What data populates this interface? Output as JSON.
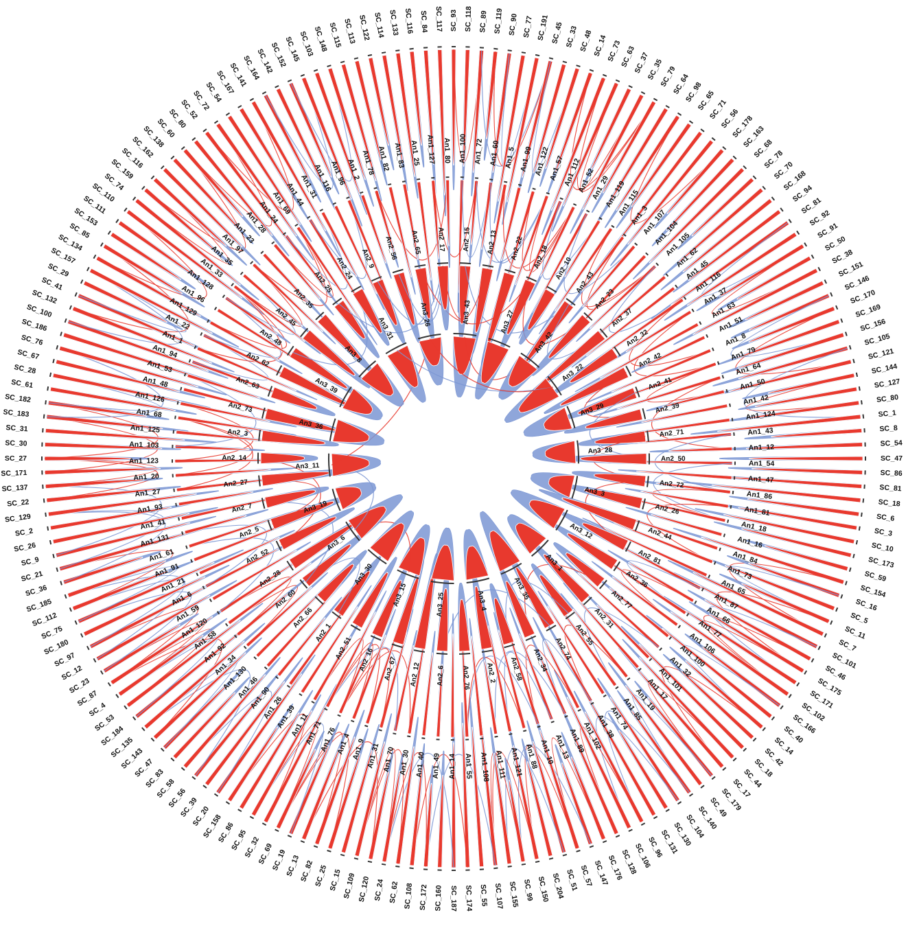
{
  "colors": {
    "primary_link": "#e8392e",
    "secondary_link": "#7b96d4",
    "segment_stroke": "#333333",
    "label": "#111111"
  },
  "rings": [
    {
      "id": "outer",
      "labels": [
        "SC_93",
        "SC_118",
        "SC_89",
        "SC_119",
        "SC_90",
        "SC_77",
        "SC_191",
        "SC_45",
        "SC_33",
        "SC_48",
        "SC_14",
        "SC_73",
        "SC_63",
        "SC_37",
        "SC_35",
        "SC_79",
        "SC_64",
        "SC_98",
        "SC_65",
        "SC_71",
        "SC_56",
        "SC_178",
        "SC_163",
        "SC_68",
        "SC_78",
        "SC_70",
        "SC_168",
        "SC_94",
        "SC_81",
        "SC_92",
        "SC_91",
        "SC_50",
        "SC_38",
        "SC_151",
        "SC_146",
        "SC_170",
        "SC_169",
        "SC_156",
        "SC_105",
        "SC_121",
        "SC_144",
        "SC_127",
        "SC_80",
        "SC_1",
        "SC_8",
        "SC_54",
        "SC_47",
        "SC_86",
        "SC_81",
        "SC_18",
        "SC_6",
        "SC_3",
        "SC_10",
        "SC_173",
        "SC_59",
        "SC_154",
        "SC_16",
        "SC_5",
        "SC_11",
        "SC_7",
        "SC_101",
        "SC_46",
        "SC_175",
        "SC_171",
        "SC_102",
        "SC_166",
        "SC_40",
        "SC_14",
        "SC_42",
        "SC_18",
        "SC_44",
        "SC_17",
        "SC_179",
        "SC_49",
        "SC_140",
        "SC_104",
        "SC_130",
        "SC_131",
        "SC_96",
        "SC_106",
        "SC_128",
        "SC_176",
        "SC_147",
        "SC_57",
        "SC_51",
        "SC_204",
        "SC_150",
        "SC_99",
        "SC_155",
        "SC_107",
        "SC_55",
        "SC_174",
        "SC_187",
        "SC_160",
        "SC_172",
        "SC_108",
        "SC_62",
        "SC_24",
        "SC_120",
        "SC_109",
        "SC_15",
        "SC_25",
        "SC_82",
        "SC_13",
        "SC_19",
        "SC_69",
        "SC_32",
        "SC_95",
        "SC_86",
        "SC_158",
        "SC_20",
        "SC_39",
        "SC_56",
        "SC_58",
        "SC_83",
        "SC_47",
        "SC_143",
        "SC_135",
        "SC_184",
        "SC_53",
        "SC_4",
        "SC_87",
        "SC_23",
        "SC_12",
        "SC_97",
        "SC_180",
        "SC_75",
        "SC_112",
        "SC_185",
        "SC_36",
        "SC_21",
        "SC_9",
        "SC_26",
        "SC_2",
        "SC_129",
        "SC_22",
        "SC_137",
        "SC_171",
        "SC_27",
        "SC_30",
        "SC_31",
        "SC_183",
        "SC_182",
        "SC_61",
        "SC_28",
        "SC_67",
        "SC_76",
        "SC_186",
        "SC_100",
        "SC_132",
        "SC_41",
        "SC_29",
        "SC_157",
        "SC_134",
        "SC_85",
        "SC_153",
        "SC_111",
        "SC_110",
        "SC_74",
        "SC_159",
        "SC_116",
        "SC_162",
        "SC_138",
        "SC_60",
        "SC_80",
        "SC_52",
        "SC_72",
        "SC_54",
        "SC_167",
        "SC_141",
        "SC_164",
        "SC_142",
        "SC_152",
        "SC_145",
        "SC_103",
        "SC_148",
        "SC_115",
        "SC_113",
        "SC_122",
        "SC_114",
        "SC_133",
        "SC_116",
        "SC_84",
        "SC_117"
      ]
    },
    {
      "id": "an1",
      "labels": [
        "An1_100",
        "An1_72",
        "An1_60",
        "An1_5",
        "An1_99",
        "An1_122",
        "An1_57",
        "An1_112",
        "An1_52",
        "An1_29",
        "An1_119",
        "An1_115",
        "An1_3",
        "An1_107",
        "An1_104",
        "An1_105",
        "An1_62",
        "An1_45",
        "An1_116",
        "An1_37",
        "An1_63",
        "An1_51",
        "An1_8",
        "An1_79",
        "An1_64",
        "An1_50",
        "An1_42",
        "An1_124",
        "An1_43",
        "An1_12",
        "An1_54",
        "An1_47",
        "An1_86",
        "An1_81",
        "An1_18",
        "An1_16",
        "An1_84",
        "An1_73",
        "An1_65",
        "An1_87",
        "An1_66",
        "An1_77",
        "An1_106",
        "An1_100",
        "An1_32",
        "An1_101",
        "An1_17",
        "An1_19",
        "An1_85",
        "An1_74",
        "An1_38",
        "An1_102",
        "An1_89",
        "An1_13",
        "An1_10",
        "An1_88",
        "An1_121",
        "An1_111",
        "An1_108",
        "An1_55",
        "An1_14",
        "An1_49",
        "An1_40",
        "An1_30",
        "An1_70",
        "An1_31",
        "An1_9",
        "An1_4",
        "An1_76",
        "An1_71",
        "An1_11",
        "An1_39",
        "An1_26",
        "An1_90",
        "An1_46",
        "An1_130",
        "An1_34",
        "An1_92",
        "An1_58",
        "An1_120",
        "An1_59",
        "An1_6",
        "An1_21",
        "An1_91",
        "An1_61",
        "An1_131",
        "An1_41",
        "An1_93",
        "An1_27",
        "An1_20",
        "An1_123",
        "An1_103",
        "An1_125",
        "An1_68",
        "An1_126",
        "An1_48",
        "An1_53",
        "An1_94",
        "An1_1",
        "An1_22",
        "An1_129",
        "An1_96",
        "An1_128",
        "An1_33",
        "An1_35",
        "An1_97",
        "An1_23",
        "An1_28",
        "An1_24",
        "An1_69",
        "An1_44",
        "An1_31",
        "An1_116",
        "An1_96",
        "An1_2",
        "An1_78",
        "An1_82",
        "An1_83",
        "An1_25",
        "An1_127",
        "An1_80"
      ]
    },
    {
      "id": "an2",
      "labels": [
        "An2_15",
        "An2_13",
        "An2_22",
        "An2_18",
        "An2_10",
        "An2_43",
        "An2_23",
        "An2_37",
        "An2_32",
        "An2_42",
        "An2_41",
        "An2_39",
        "An2_71",
        "An2_50",
        "An2_72",
        "An2_26",
        "An2_44",
        "An2_81",
        "An2_36",
        "An2_77",
        "An2_31",
        "An2_55",
        "An2_74",
        "An2_34",
        "An2_58",
        "An2_2",
        "An2_76",
        "An2_6",
        "An2_12",
        "An2_67",
        "An2_16",
        "An2_51",
        "An2_1",
        "An2_66",
        "An2_60",
        "An2_28",
        "An2_52",
        "An2_5",
        "An2_7",
        "An2_27",
        "An2_14",
        "An2_3",
        "An2_73",
        "An2_63",
        "An2_62",
        "An2_48",
        "An2_45",
        "An2_35",
        "An2_25",
        "An2_24",
        "An2_9",
        "An2_56",
        "An2_65",
        "An2_17"
      ]
    },
    {
      "id": "an3",
      "labels": [
        "An3_43",
        "An3_27",
        "An3_42",
        "An3_22",
        "An3_29",
        "An3_28",
        "An3_3",
        "An3_12",
        "An3_1",
        "An3_35",
        "An3_4",
        "An3_25",
        "An3_15",
        "An3_30",
        "An3_6",
        "An3_19",
        "An3_11",
        "An3_36",
        "An3_39",
        "An3_8",
        "An3_31",
        "An3_26"
      ]
    }
  ]
}
